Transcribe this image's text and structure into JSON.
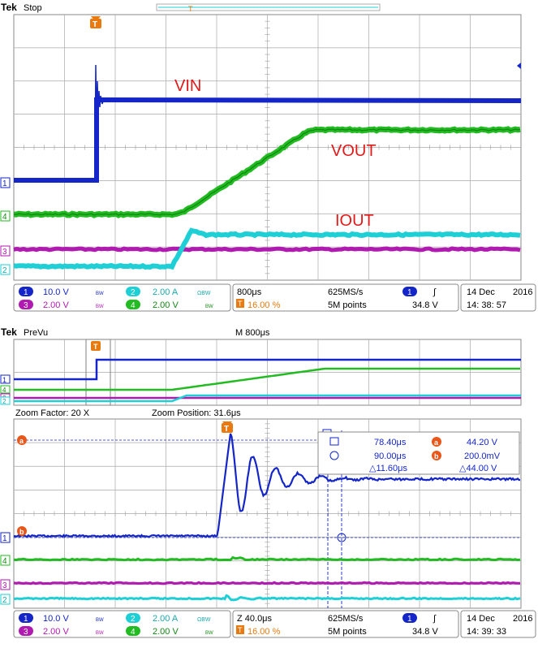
{
  "colors": {
    "ch1": "#1426c8",
    "ch2": "#1ecfd6",
    "ch3": "#b01ab0",
    "ch4": "#22bb22",
    "trigger": "#e87a10",
    "cursor_a": "#e8561a",
    "label_red": "#e01a1a",
    "grid": "#9a9a9a",
    "panel_border": "#8a8a8a"
  },
  "top": {
    "brand": "Tek",
    "status": "Stop",
    "trigger_marker": "T",
    "labels": {
      "vin": "VIN",
      "vout": "VOUT",
      "iout": "IOUT"
    },
    "channel_markers": [
      "1",
      "4",
      "3",
      "2"
    ],
    "readout": {
      "ch1_num": "1",
      "ch1_scale": "10.0 V",
      "ch1_bw": "BW",
      "ch2_num": "2",
      "ch2_scale": "2.00 A",
      "ch2_bw": "ΩBW",
      "ch3_num": "3",
      "ch3_scale": "2.00 V",
      "ch3_bw": "BW",
      "ch4_num": "4",
      "ch4_scale": "2.00 V",
      "ch4_bw": "BW",
      "timebase": "800μs",
      "trigger_pos": "16.00 %",
      "sample_rate": "625MS/s",
      "record": "5M points",
      "trig_ch": "1",
      "trig_slope": "∫",
      "trig_level": "34.8 V",
      "date": "14 Dec",
      "year": "2016",
      "time": "14: 38: 57"
    }
  },
  "bottom": {
    "brand": "Tek",
    "status": "PreVu",
    "overview_timebase": "M 800μs",
    "zoom_factor": "Zoom Factor: 20 X",
    "zoom_position": "Zoom Position: 31.6μs",
    "trigger_marker": "T",
    "cursor_a_label": "a",
    "cursor_b_label": "b",
    "channel_markers": [
      "1",
      "4",
      "3",
      "2"
    ],
    "cursor_box": {
      "t1": "78.40μs",
      "t2": "90.00μs",
      "dt": "△11.60μs",
      "a_val": "44.20 V",
      "b_val": "200.0mV",
      "dv": "△44.00 V"
    },
    "readout": {
      "ch1_num": "1",
      "ch1_scale": "10.0 V",
      "ch1_bw": "BW",
      "ch2_num": "2",
      "ch2_scale": "2.00 A",
      "ch2_bw": "ΩBW",
      "ch3_num": "3",
      "ch3_scale": "2.00 V",
      "ch3_bw": "BW",
      "ch4_num": "4",
      "ch4_scale": "2.00 V",
      "ch4_bw": "BW",
      "timebase": "Z 40.0μs",
      "trigger_pos": "16.00 %",
      "sample_rate": "625MS/s",
      "record": "5M points",
      "trig_ch": "1",
      "trig_slope": "∫",
      "trig_level": "34.8 V",
      "date": "14 Dec",
      "year": "2016",
      "time": "14: 39: 33"
    }
  }
}
